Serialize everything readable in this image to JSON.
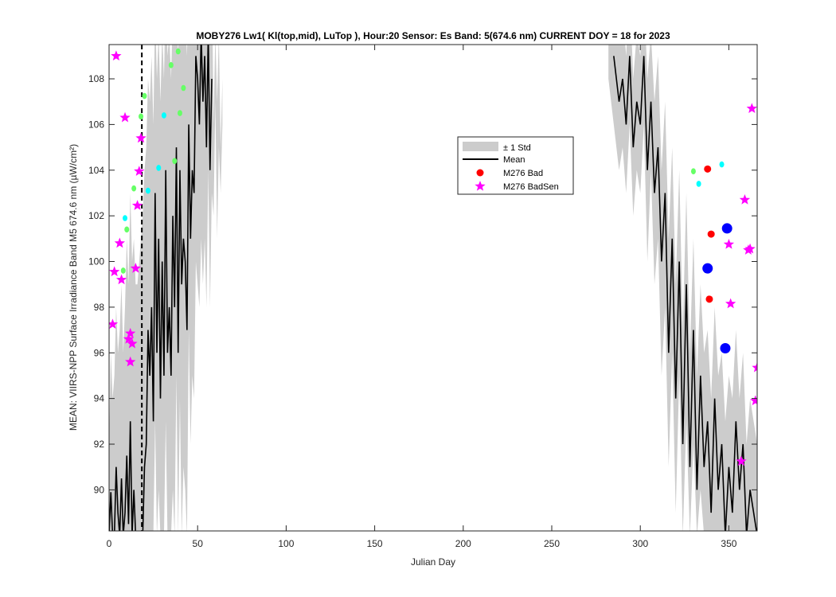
{
  "chart_data": {
    "type": "line",
    "title": "MOBY276   Lw1( Kl(top,mid), LuTop ),   Hour:20 Sensor: Es Band: 5(674.6 nm)   CURRENT DOY = 18 for 2023",
    "xlabel": "Julian Day",
    "ylabel": "MEAN: VIIRS-NPP Surface Irradiance Band M5 674.6 nm (µW/cm²)",
    "xlim": [
      0,
      366
    ],
    "ylim": [
      88.2,
      109.5
    ],
    "xticks": [
      0,
      50,
      100,
      150,
      200,
      250,
      300,
      350
    ],
    "yticks": [
      90,
      92,
      94,
      96,
      98,
      100,
      102,
      104,
      106,
      108
    ],
    "current_doy": 18.5,
    "legend_position": "upper-center-right",
    "legend": [
      "± 1 Std",
      "Mean",
      "M276 Bad",
      "M276 BadSen"
    ],
    "colors": {
      "std_band": "#cccccc",
      "mean_line": "#000000",
      "bad": "#ff0000",
      "badsen": "#ff00ff",
      "cyan_pts": "#00ffff",
      "green_pts": "#66ff66",
      "blue_pts": "#0000ff"
    },
    "series": [
      {
        "name": "Mean",
        "x": [
          0,
          1,
          2,
          3,
          4,
          5,
          6,
          7,
          8,
          9,
          10,
          11,
          12,
          13,
          14,
          15,
          16,
          17,
          18,
          19,
          20,
          21,
          22,
          23,
          24,
          25,
          26,
          27,
          28,
          29,
          30,
          31,
          32,
          33,
          34,
          35,
          36,
          37,
          38,
          39,
          40,
          41,
          42,
          43,
          44,
          45,
          46,
          47,
          48,
          49,
          50,
          51,
          52,
          53,
          54,
          55,
          56,
          57,
          58
        ],
        "y": [
          88,
          89.9,
          88,
          88,
          91,
          89,
          88,
          90.5,
          88,
          89,
          91.5,
          88.5,
          93,
          88,
          90,
          88,
          88,
          88,
          88,
          88,
          91,
          92,
          97,
          95,
          98,
          93,
          103,
          96,
          101,
          94,
          100,
          95,
          104,
          96,
          98,
          95,
          102,
          98,
          105,
          96,
          104,
          99,
          101,
          100,
          97,
          106,
          101,
          104,
          103,
          109,
          108,
          106,
          110,
          107,
          109,
          105,
          110,
          104,
          108
        ]
      },
      {
        "name": "Mean",
        "x": [
          285,
          288,
          290,
          292,
          294,
          296,
          298,
          300,
          302,
          304,
          306,
          308,
          310,
          312,
          314,
          316,
          318,
          320,
          322,
          324,
          326,
          328,
          330,
          332,
          334,
          336,
          338,
          340,
          342,
          344,
          346,
          348,
          350,
          352,
          354,
          356,
          358,
          360,
          362,
          364,
          366
        ],
        "y": [
          109,
          107,
          108,
          106,
          109,
          105,
          107,
          106,
          109,
          104,
          107,
          103,
          105,
          100,
          103,
          96,
          101,
          94,
          100,
          92,
          99,
          91,
          97,
          90,
          95,
          91,
          93,
          89,
          94,
          90,
          92,
          88,
          91,
          89,
          93,
          90,
          92,
          88,
          90,
          89,
          88
        ]
      }
    ],
    "std_band": [
      {
        "x": [
          0,
          1,
          2,
          3,
          4,
          5,
          6,
          7,
          8,
          9,
          10,
          11,
          12,
          13,
          14,
          15,
          16,
          17,
          18,
          19,
          20,
          21,
          22,
          23,
          24,
          25,
          26,
          27,
          28,
          29,
          30,
          31,
          32,
          33,
          34,
          35,
          36,
          37,
          38,
          39,
          40,
          41,
          42,
          43,
          44,
          45,
          46,
          47,
          48,
          49,
          50,
          51,
          52,
          53,
          54,
          55,
          56,
          57,
          58,
          59,
          60,
          61,
          62,
          63,
          64
        ],
        "upper": [
          92,
          96,
          94,
          95,
          98,
          96,
          97,
          99,
          96,
          98,
          101,
          99,
          103,
          100,
          101,
          99,
          99,
          100,
          101,
          102,
          104,
          105,
          108,
          107,
          109,
          106,
          111,
          108,
          110,
          107,
          110,
          108,
          112,
          109,
          110,
          108,
          111,
          110,
          112,
          109,
          112,
          111,
          111,
          111,
          109,
          113,
          111,
          113,
          112,
          114,
          114,
          112,
          115,
          113,
          114,
          112,
          115,
          111,
          113,
          106,
          110,
          107,
          110,
          105,
          108
        ],
        "lower": [
          88,
          88,
          88,
          88,
          88,
          88,
          88,
          88,
          88,
          88,
          88,
          88,
          88,
          88,
          88,
          88,
          88,
          88,
          88,
          88,
          88,
          88,
          88,
          88,
          88,
          88,
          93,
          88,
          90,
          88,
          88,
          88,
          93,
          88,
          88,
          88,
          90,
          88,
          95,
          88,
          94,
          88,
          91,
          90,
          88,
          97,
          92,
          95,
          94,
          100,
          99,
          98,
          101,
          99,
          101,
          98,
          104,
          98,
          103,
          102,
          107,
          101,
          105,
          103,
          106
        ]
      },
      {
        "x": [
          282,
          285,
          288,
          290,
          292,
          294,
          296,
          298,
          300,
          302,
          304,
          306,
          308,
          310,
          312,
          314,
          316,
          318,
          320,
          322,
          324,
          326,
          328,
          330,
          332,
          334,
          336,
          338,
          340,
          342,
          344,
          346,
          348,
          350,
          352,
          354,
          356,
          358,
          360,
          362,
          364,
          366
        ],
        "upper": [
          110,
          112,
          110,
          111,
          109,
          112,
          108,
          110,
          109,
          112,
          108,
          110,
          107,
          109,
          104,
          107,
          101,
          105,
          99,
          104,
          97,
          103,
          96,
          101,
          95,
          99,
          96,
          97,
          94,
          98,
          95,
          96,
          93,
          95,
          94,
          97,
          94,
          96,
          92,
          94,
          93,
          92
        ],
        "lower": [
          108,
          106,
          104,
          105,
          103,
          106,
          102,
          104,
          103,
          106,
          100,
          104,
          99,
          101,
          95,
          98,
          91,
          96,
          89,
          95,
          88,
          93,
          88,
          92,
          88,
          90,
          88,
          88,
          88,
          88,
          88,
          88,
          88,
          88,
          88,
          88,
          88,
          88,
          88,
          88,
          88,
          88
        ]
      }
    ],
    "markers": {
      "bad": {
        "x": [
          338,
          339,
          340
        ],
        "y": [
          104.05,
          98.35,
          101.2
        ]
      },
      "blue": {
        "x": [
          338,
          349,
          348
        ],
        "y": [
          99.7,
          101.45,
          96.2
        ]
      },
      "badsen": {
        "x": [
          4,
          3,
          2,
          6,
          9,
          7,
          16,
          18,
          17,
          15,
          11,
          12,
          13,
          12,
          363,
          359,
          350,
          361,
          362,
          351,
          366,
          365,
          357
        ],
        "y": [
          109,
          99.55,
          97.25,
          100.8,
          106.3,
          99.2,
          102.45,
          105.4,
          103.95,
          99.7,
          96.6,
          95.6,
          96.4,
          96.85,
          106.7,
          102.7,
          100.75,
          100.5,
          100.55,
          98.15,
          95.35,
          93.9,
          91.25
        ]
      },
      "cyan": {
        "x": [
          9,
          22,
          28,
          31,
          346,
          333
        ],
        "y": [
          101.9,
          103.1,
          104.1,
          106.4,
          104.25,
          103.4
        ]
      },
      "green": {
        "x": [
          10,
          8,
          14,
          18,
          20,
          35,
          37,
          39,
          40,
          42,
          330
        ],
        "y": [
          101.4,
          99.6,
          103.2,
          106.35,
          107.25,
          108.6,
          104.4,
          109.2,
          106.5,
          107.6,
          103.95
        ]
      }
    }
  }
}
